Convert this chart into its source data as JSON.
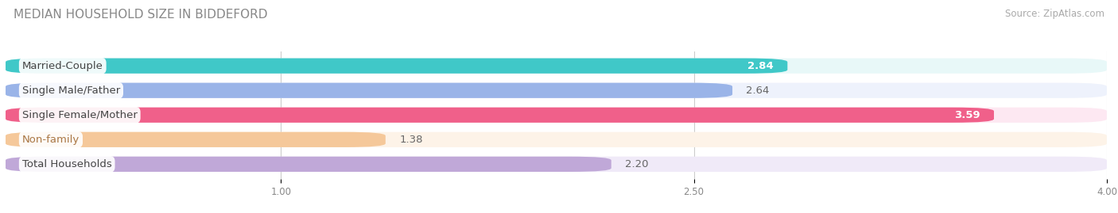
{
  "title": "MEDIAN HOUSEHOLD SIZE IN BIDDEFORD",
  "source": "Source: ZipAtlas.com",
  "categories": [
    "Married-Couple",
    "Single Male/Father",
    "Single Female/Mother",
    "Non-family",
    "Total Households"
  ],
  "values": [
    2.84,
    2.64,
    3.59,
    1.38,
    2.2
  ],
  "bar_colors": [
    "#40c8c8",
    "#9ab4e8",
    "#f0608a",
    "#f5c89a",
    "#c0a8d8"
  ],
  "bar_bg_colors": [
    "#e8f8f8",
    "#eef2fc",
    "#fde8f2",
    "#fdf3e8",
    "#f0eaf8"
  ],
  "value_colors": [
    "white",
    "#555555",
    "white",
    "#555555",
    "#555555"
  ],
  "label_colors": [
    "#444444",
    "#444444",
    "#444444",
    "#aa7744",
    "#444444"
  ],
  "xlim": [
    0.0,
    4.0
  ],
  "xticks": [
    1.0,
    2.5,
    4.0
  ],
  "bar_height": 0.62,
  "label_fontsize": 9.5,
  "value_fontsize": 9.5,
  "title_fontsize": 11,
  "source_fontsize": 8.5
}
